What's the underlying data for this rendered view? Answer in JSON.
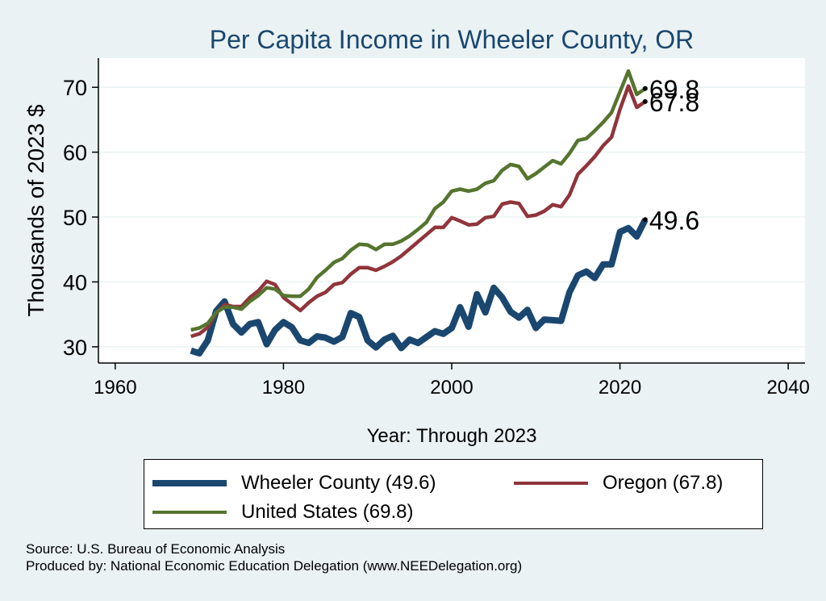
{
  "chart_data": {
    "type": "line",
    "title": "Per Capita Income in Wheeler County, OR",
    "xlabel": "Year: Through 2023",
    "ylabel": "Thousands of 2023 $",
    "xlim": [
      1958,
      2042
    ],
    "ylim": [
      27.5,
      74.5
    ],
    "xticks": [
      1960,
      1980,
      2000,
      2020,
      2040
    ],
    "yticks": [
      30,
      40,
      50,
      60,
      70
    ],
    "grid": true,
    "x": [
      1969,
      1970,
      1971,
      1972,
      1973,
      1974,
      1975,
      1976,
      1977,
      1978,
      1979,
      1980,
      1981,
      1982,
      1983,
      1984,
      1985,
      1986,
      1987,
      1988,
      1989,
      1990,
      1991,
      1992,
      1993,
      1994,
      1995,
      1996,
      1997,
      1998,
      1999,
      2000,
      2001,
      2002,
      2003,
      2004,
      2005,
      2006,
      2007,
      2008,
      2009,
      2010,
      2011,
      2012,
      2013,
      2014,
      2015,
      2016,
      2017,
      2018,
      2019,
      2020,
      2021,
      2022,
      2023
    ],
    "series": [
      {
        "name": "Wheeler County",
        "legend": "Wheeler County (49.6)",
        "end_label": "49.6",
        "color": "#1a476f",
        "width": 8,
        "values": [
          29.4,
          29.0,
          31.0,
          35.5,
          37.0,
          33.5,
          32.2,
          33.5,
          33.8,
          30.4,
          32.6,
          33.8,
          33.0,
          31.0,
          30.6,
          31.6,
          31.4,
          30.8,
          31.5,
          35.2,
          34.6,
          31.0,
          29.9,
          31.1,
          31.7,
          29.8,
          31.1,
          30.6,
          31.5,
          32.4,
          32.0,
          32.9,
          36.1,
          33.1,
          38.1,
          35.3,
          39.1,
          37.6,
          35.4,
          34.5,
          35.7,
          32.9,
          34.2,
          34.1,
          34.0,
          38.4,
          41.0,
          41.6,
          40.6,
          42.7,
          42.7,
          47.7,
          48.3,
          47.0,
          49.6
        ]
      },
      {
        "name": "Oregon",
        "legend": "Oregon (67.8)",
        "end_label": "67.8",
        "color": "#90353b",
        "width": 4.5,
        "values": [
          31.6,
          32.0,
          33.0,
          35.2,
          36.5,
          36.2,
          36.2,
          37.6,
          38.6,
          40.1,
          39.6,
          37.6,
          36.6,
          35.6,
          36.8,
          37.8,
          38.4,
          39.6,
          39.9,
          41.2,
          42.2,
          42.2,
          41.8,
          42.4,
          43.1,
          44.0,
          45.1,
          46.2,
          47.3,
          48.4,
          48.4,
          49.9,
          49.4,
          48.8,
          48.9,
          49.9,
          50.1,
          52.0,
          52.3,
          52.1,
          50.1,
          50.3,
          50.9,
          51.9,
          51.6,
          53.4,
          56.6,
          57.9,
          59.3,
          61.0,
          62.3,
          66.6,
          70.2,
          66.9,
          67.8
        ]
      },
      {
        "name": "United States",
        "legend": "United States (69.8)",
        "end_label": "69.8",
        "color": "#55752f",
        "width": 4.5,
        "values": [
          32.6,
          32.9,
          33.6,
          35.3,
          36.1,
          36.1,
          35.8,
          37.0,
          37.9,
          39.1,
          38.9,
          37.9,
          37.8,
          37.8,
          38.9,
          40.7,
          41.8,
          43.0,
          43.6,
          44.9,
          45.8,
          45.7,
          45.0,
          45.8,
          45.8,
          46.3,
          47.1,
          48.1,
          49.2,
          51.3,
          52.3,
          54.0,
          54.3,
          54.0,
          54.3,
          55.2,
          55.6,
          57.2,
          58.1,
          57.8,
          55.9,
          56.7,
          57.7,
          58.7,
          58.2,
          59.8,
          61.8,
          62.1,
          63.3,
          64.6,
          66.1,
          69.3,
          72.5,
          68.9,
          69.8
        ]
      }
    ],
    "legend_position": "bottom"
  },
  "footer": {
    "source": "Source: U.S. Bureau of Economic Analysis",
    "produced": "Produced by: National Economic Education Delegation (www.NEEDelegation.org)"
  }
}
